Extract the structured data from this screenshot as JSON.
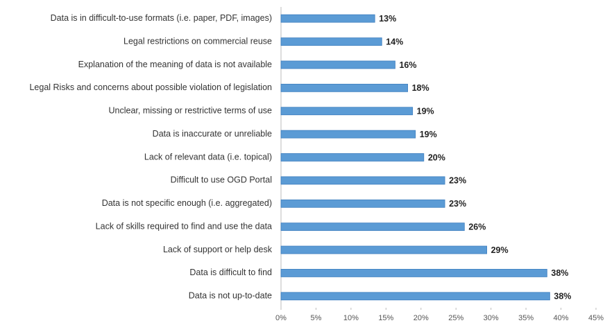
{
  "chart_data": {
    "type": "bar",
    "orientation": "horizontal",
    "color": "#5b9bd5",
    "categories": [
      "Data is in difficult-to-use formats (i.e. paper, PDF, images)",
      "Legal restrictions on commercial reuse",
      "Explanation of the meaning of data is not available",
      "Legal Risks and concerns about possible violation of legislation",
      "Unclear, missing or restrictive terms of use",
      "Data is inaccurate or unreliable",
      "Lack of relevant data (i.e. topical)",
      "Difficult to use OGD Portal",
      "Data is not specific enough (i.e. aggregated)",
      "Lack of skills required to find and use the data",
      "Lack of support or help desk",
      "Data is difficult to find",
      "Data is not up-to-date"
    ],
    "values": [
      13.4,
      14.4,
      16.3,
      18.1,
      18.8,
      19.2,
      20.4,
      23.4,
      23.4,
      26.2,
      29.4,
      38.0,
      38.4
    ],
    "value_labels": [
      "13%",
      "14%",
      "16%",
      "18%",
      "19%",
      "19%",
      "20%",
      "23%",
      "23%",
      "26%",
      "29%",
      "38%",
      "38%"
    ],
    "xlim": [
      0,
      45
    ],
    "xticks": [
      {
        "value": 0,
        "label": "0%"
      },
      {
        "value": 5,
        "label": "5%"
      },
      {
        "value": 10,
        "label": "10%"
      },
      {
        "value": 15,
        "label": "15%"
      },
      {
        "value": 20,
        "label": "20%"
      },
      {
        "value": 25,
        "label": "25%"
      },
      {
        "value": 30,
        "label": "30%"
      },
      {
        "value": 35,
        "label": "35%"
      },
      {
        "value": 40,
        "label": "40%"
      },
      {
        "value": 45,
        "label": "45%"
      }
    ]
  }
}
